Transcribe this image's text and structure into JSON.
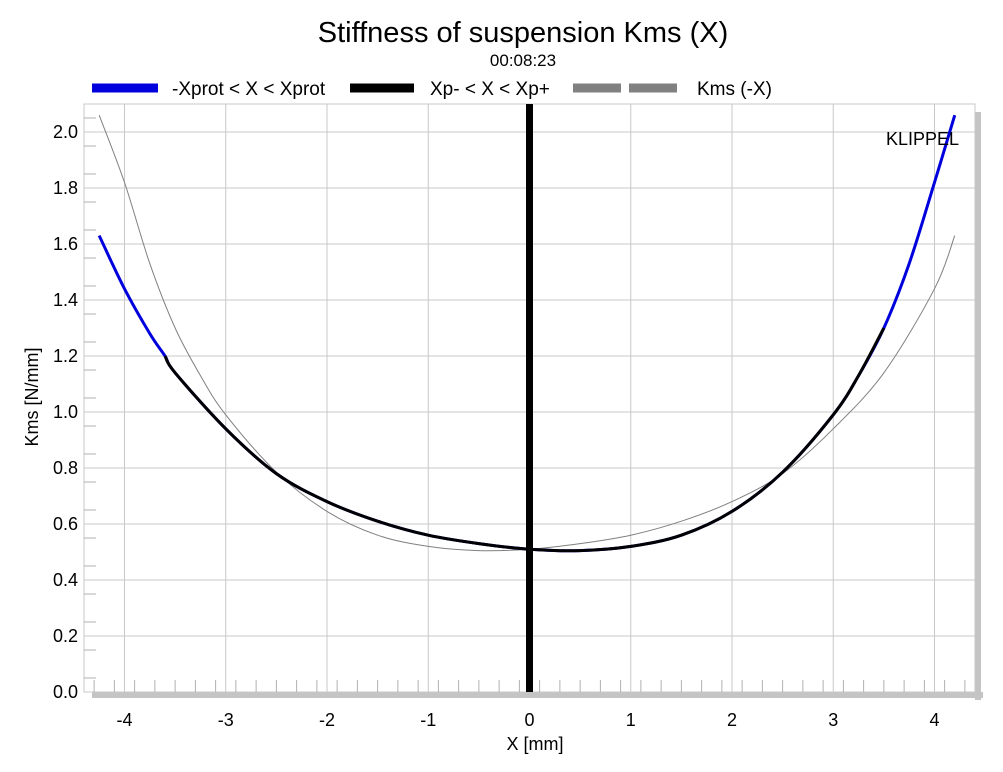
{
  "chart_data": {
    "type": "line",
    "title": "Stiffness of suspension Kms (X)",
    "subtitle": "00:08:23",
    "xlabel": "X [mm]",
    "ylabel": "Kms [N/mm]",
    "watermark": "KLIPPEL",
    "xlim": [
      -4.4,
      4.4
    ],
    "ylim": [
      0,
      2.1
    ],
    "xticks": [
      -4,
      -3,
      -2,
      -1,
      0,
      1,
      2,
      3,
      4
    ],
    "yticks": [
      0.0,
      0.2,
      0.4,
      0.6,
      0.8,
      1.0,
      1.2,
      1.4,
      1.6,
      1.8,
      2.0
    ],
    "xtick_labels": [
      "-4",
      "-3",
      "-2",
      "-1",
      "0",
      "1",
      "2",
      "3",
      "4"
    ],
    "ytick_labels": [
      "0.0",
      "0.2",
      "0.4",
      "0.6",
      "0.8",
      "1.0",
      "1.2",
      "1.4",
      "1.6",
      "1.8",
      "2.0"
    ],
    "grid": true,
    "legend_position": "top",
    "legend": [
      {
        "name": "-Xprot < X < Xprot",
        "color": "#0000dd",
        "style": "solid"
      },
      {
        "name": "Xp- < X < Xp+",
        "color": "#000000",
        "style": "solid"
      },
      {
        "name": "Kms (-X)",
        "color": "#808080",
        "style": "dashed"
      }
    ],
    "series": [
      {
        "name": "-Xprot < X < Xprot",
        "color": "#0000dd",
        "x": [
          -4.25,
          -4.0,
          -3.75,
          -3.6,
          -3.5,
          -3.0,
          -2.5,
          -2.0,
          -1.5,
          -1.0,
          -0.5,
          0.0,
          0.5,
          1.0,
          1.5,
          2.0,
          2.5,
          3.0,
          3.25,
          3.5,
          3.75,
          4.0,
          4.2
        ],
        "y": [
          1.63,
          1.44,
          1.28,
          1.2,
          1.14,
          0.94,
          0.78,
          0.68,
          0.61,
          0.56,
          0.53,
          0.51,
          0.505,
          0.52,
          0.56,
          0.645,
          0.785,
          0.99,
          1.13,
          1.3,
          1.53,
          1.82,
          2.06
        ]
      },
      {
        "name": "Xp- < X < Xp+",
        "color": "#000000",
        "x": [
          -3.6,
          -3.5,
          -3.0,
          -2.5,
          -2.0,
          -1.5,
          -1.0,
          -0.5,
          0.0,
          0.5,
          1.0,
          1.5,
          2.0,
          2.5,
          3.0,
          3.25,
          3.5
        ],
        "y": [
          1.2,
          1.14,
          0.94,
          0.78,
          0.68,
          0.61,
          0.56,
          0.53,
          0.51,
          0.505,
          0.52,
          0.56,
          0.645,
          0.785,
          0.99,
          1.13,
          1.3
        ]
      },
      {
        "name": "Kms (-X)",
        "color": "#808080",
        "x": [
          -4.25,
          -4.0,
          -3.75,
          -3.5,
          -3.25,
          -3.0,
          -2.5,
          -2.0,
          -1.5,
          -1.0,
          -0.5,
          0.0,
          0.5,
          1.0,
          1.5,
          2.0,
          2.5,
          3.0,
          3.5,
          4.0,
          4.2
        ],
        "y": [
          2.06,
          1.82,
          1.53,
          1.3,
          1.13,
          0.99,
          0.785,
          0.645,
          0.56,
          0.52,
          0.505,
          0.51,
          0.53,
          0.56,
          0.61,
          0.68,
          0.78,
          0.94,
          1.14,
          1.44,
          1.63
        ]
      }
    ],
    "annotations": [
      {
        "type": "vertical-line",
        "x": 0,
        "color": "#000000"
      }
    ]
  }
}
